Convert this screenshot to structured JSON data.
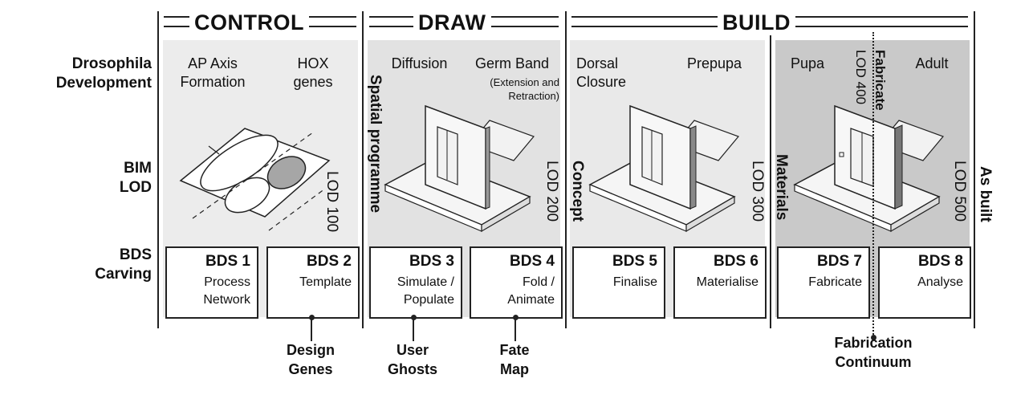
{
  "phases": {
    "control": "CONTROL",
    "draw": "DRAW",
    "build": "BUILD"
  },
  "row_labels": {
    "drosophila": [
      "Drosophila",
      "Development"
    ],
    "bim": [
      "BIM",
      "LOD"
    ],
    "bds": [
      "BDS",
      "Carving"
    ]
  },
  "stages": {
    "s1": [
      "AP Axis",
      "Formation"
    ],
    "s2": [
      "HOX",
      "genes"
    ],
    "s3": "Diffusion",
    "s4": "Germ Band",
    "s4_note": [
      "(Extension and",
      "Retraction)"
    ],
    "s5": [
      "Dorsal",
      "Closure"
    ],
    "s6": "Prepupa",
    "s7": "Pupa",
    "s8": "Adult"
  },
  "lod": {
    "lod100": "LOD 100",
    "lod200": "LOD 200",
    "lod300": "LOD 300",
    "lod400": "LOD 400",
    "lod500": "LOD 500"
  },
  "vertical_labels": {
    "spatial_programme": "Spatial programme",
    "concept": "Concept",
    "materials": "Materials",
    "fabricate": "Fabricate",
    "as_built": "As built"
  },
  "bds_boxes": [
    {
      "code": "BDS 1",
      "desc": [
        "Process",
        "Network"
      ]
    },
    {
      "code": "BDS 2",
      "desc": [
        "Template"
      ]
    },
    {
      "code": "BDS 3",
      "desc": [
        "Simulate /",
        "Populate"
      ]
    },
    {
      "code": "BDS 4",
      "desc": [
        "Fold /",
        "Animate"
      ]
    },
    {
      "code": "BDS 5",
      "desc": [
        "Finalise"
      ]
    },
    {
      "code": "BDS 6",
      "desc": [
        "Materialise"
      ]
    },
    {
      "code": "BDS 7",
      "desc": [
        "Fabricate"
      ]
    },
    {
      "code": "BDS 8",
      "desc": [
        "Analyse"
      ]
    }
  ],
  "callouts": {
    "design_genes": [
      "Design",
      "Genes"
    ],
    "user_ghosts": [
      "User",
      "Ghosts"
    ],
    "fate_map": [
      "Fate",
      "Map"
    ],
    "fabrication_continuum": [
      "Fabrication",
      "Continuum"
    ]
  },
  "colors": {
    "band_light": "#ebebeb",
    "band_mid": "#e0e0e0",
    "band_dark": "#c8c8c8",
    "ink": "#222222"
  }
}
